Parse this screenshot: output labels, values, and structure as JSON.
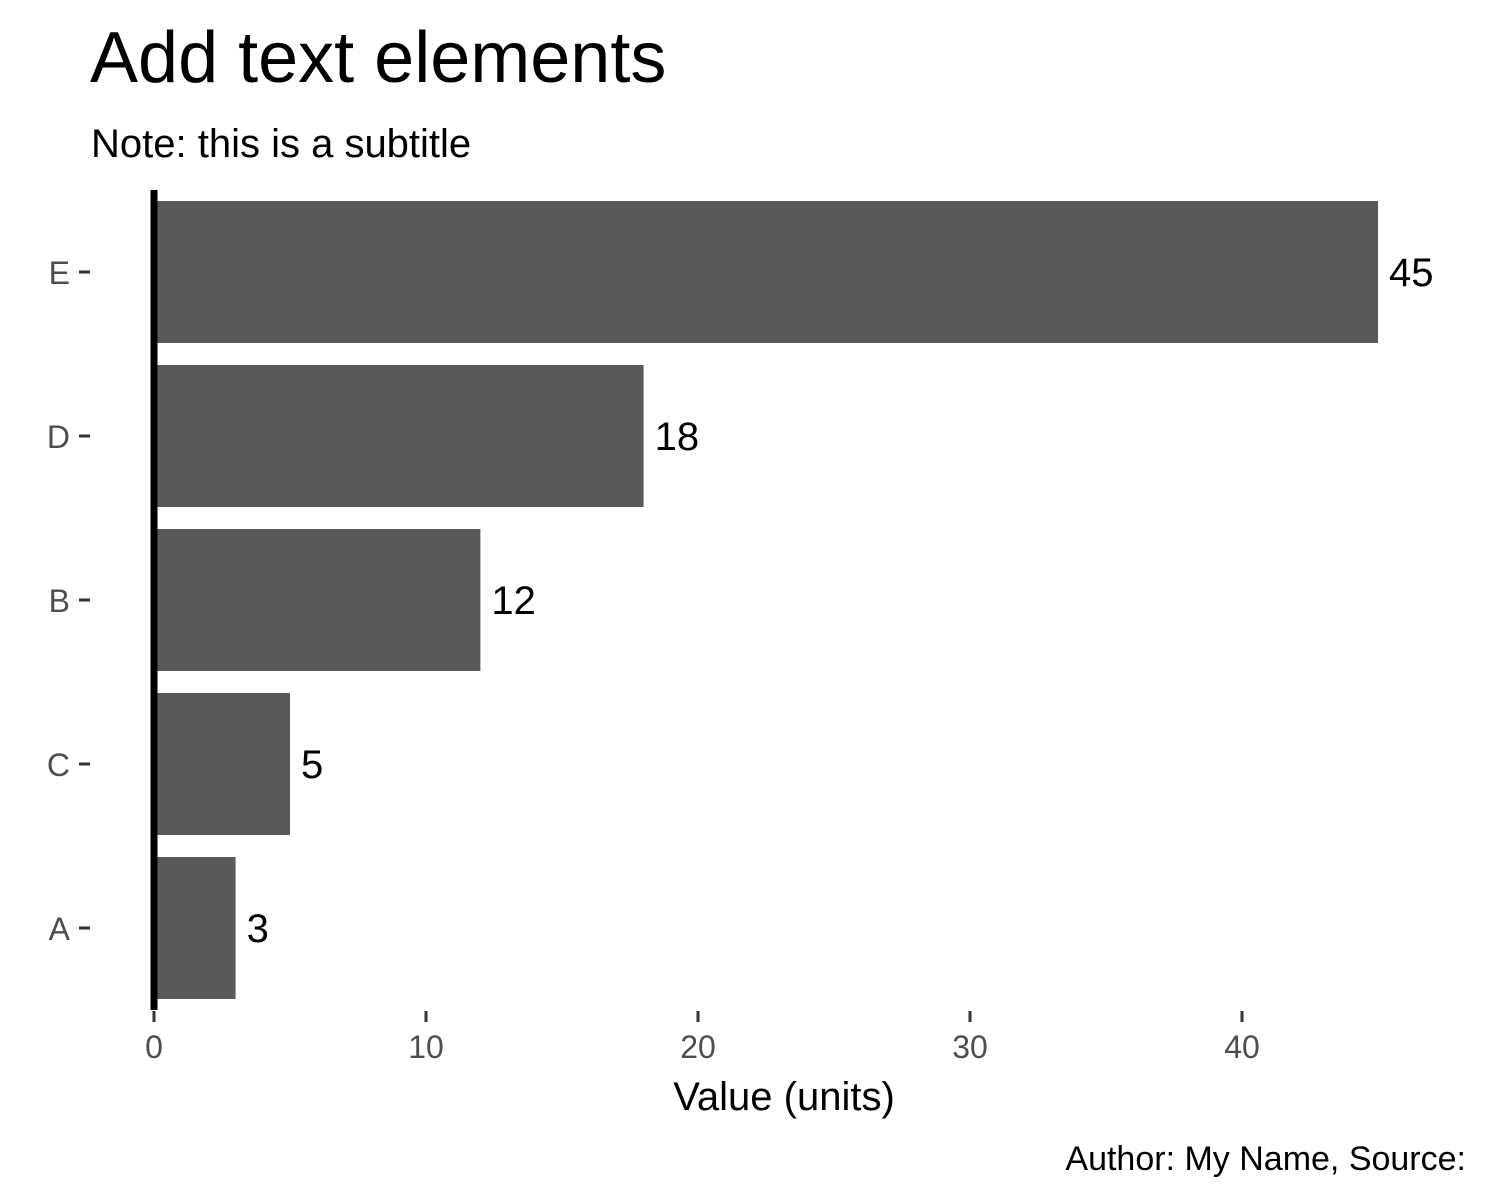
{
  "chart_data": {
    "type": "bar",
    "orientation": "horizontal",
    "title": "Add text elements",
    "subtitle": "Note: this is a subtitle",
    "xlabel": "Value (units)",
    "ylabel": "",
    "caption": "Author: My Name, Source:",
    "categories": [
      "E",
      "D",
      "B",
      "C",
      "A"
    ],
    "values": [
      45,
      18,
      12,
      5,
      3
    ],
    "data_labels": [
      "45",
      "18",
      "12",
      "5",
      "3"
    ],
    "xlim": [
      0,
      46
    ],
    "x_ticks": [
      0,
      10,
      20,
      30,
      40
    ],
    "x_tick_labels": [
      "0",
      "10",
      "20",
      "30",
      "40"
    ],
    "grid": false,
    "legend": "none",
    "bar_color": "#595959"
  }
}
